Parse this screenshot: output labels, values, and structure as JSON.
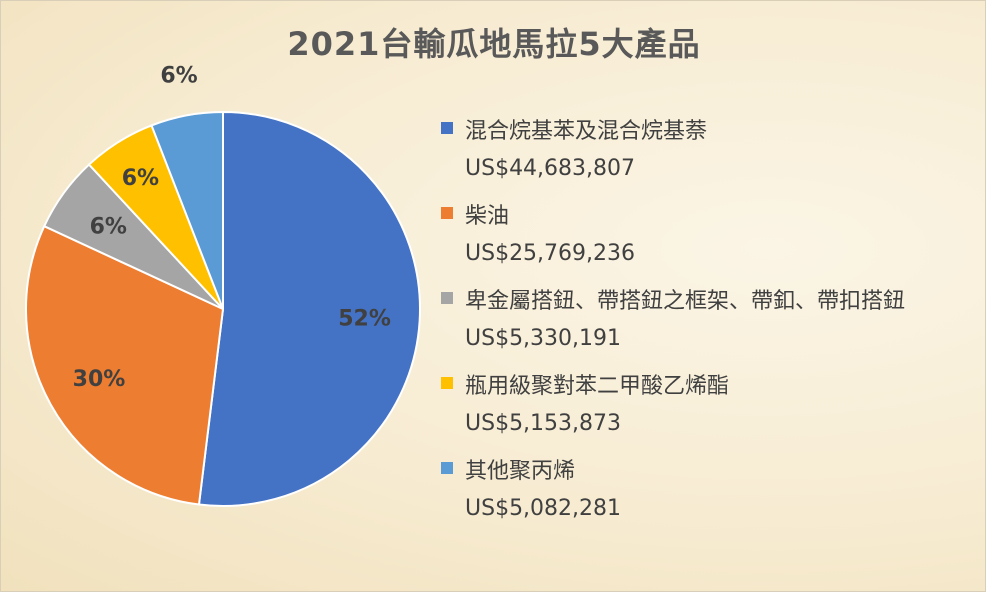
{
  "chart_data": {
    "type": "pie",
    "title": "2021台輸瓜地馬拉5大產品",
    "categories": [
      "混合烷基苯及混合烷基萘",
      "柴油",
      "卑金屬搭鈕、帶搭鈕之框架、帶釦、帶扣搭鈕",
      "瓶用級聚對苯二甲酸乙烯酯",
      "其他聚丙烯"
    ],
    "values": [
      44683807,
      25769236,
      5330191,
      5153873,
      5082281
    ],
    "value_labels": [
      "US$44,683,807",
      "US$25,769,236",
      "US$5,330,191",
      "US$5,153,873",
      "US$5,082,281"
    ],
    "percent_labels": [
      "52%",
      "30%",
      "6%",
      "6%",
      "6%"
    ],
    "colors": [
      "#4472C4",
      "#ED7D31",
      "#A5A5A5",
      "#FFC000",
      "#5B9BD5"
    ],
    "legend_position": "right"
  }
}
